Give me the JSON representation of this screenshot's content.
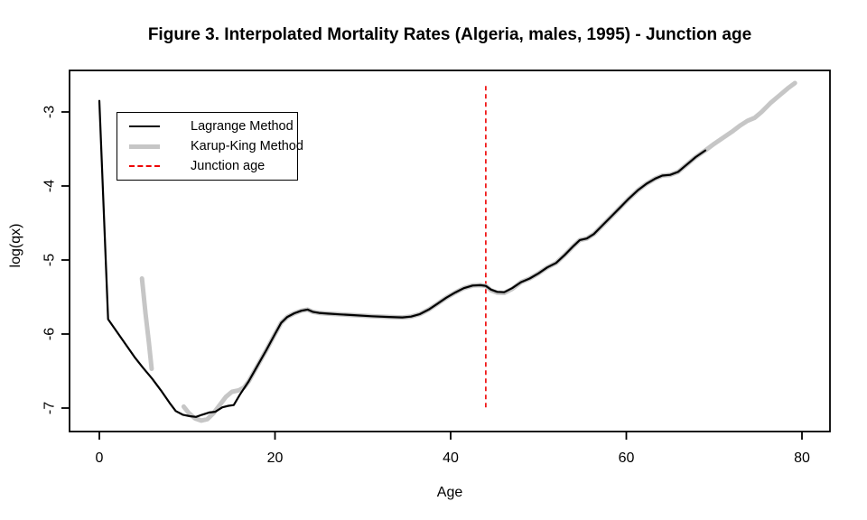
{
  "chart_data": {
    "type": "line",
    "title": "Figure 3. Interpolated Mortality Rates (Algeria, males, 1995) - Junction age",
    "xlabel": "Age",
    "ylabel": "log(qx)",
    "x_ticks": [
      0,
      20,
      40,
      60,
      80
    ],
    "y_ticks": [
      -3,
      -4,
      -5,
      -6,
      -7
    ],
    "xlim": [
      -3.4,
      83.3
    ],
    "ylim": [
      -7.32,
      -2.44
    ],
    "grid": false,
    "legend_position": "top-left",
    "junction_age": 44,
    "junction_line_extent": [
      -7.0,
      -2.65
    ],
    "colors": {
      "lagrange": "#000000",
      "karup_king": "#c6c6c6",
      "junction": "#ee0000",
      "axis": "#000000",
      "background": "#ffffff"
    },
    "legend": [
      {
        "label": "Lagrange Method",
        "style": "solid",
        "color": "#000000"
      },
      {
        "label": "Karup-King Method",
        "style": "thick",
        "color": "#c6c6c6"
      },
      {
        "label": "Junction age",
        "style": "dashed",
        "color": "#ee0000"
      }
    ],
    "series": [
      {
        "id": "karup-king-child",
        "name": "Karup-King Method (detached child segment)",
        "color": "#c6c6c6",
        "width": 5,
        "points": [
          [
            4.85,
            -5.25
          ],
          [
            5.25,
            -5.72
          ],
          [
            5.65,
            -6.12
          ],
          [
            5.95,
            -6.47
          ]
        ]
      },
      {
        "id": "karup-king",
        "name": "Karup-King Method",
        "color": "#c6c6c6",
        "width": 5,
        "points": [
          [
            9.6,
            -6.98
          ],
          [
            10.2,
            -7.07
          ],
          [
            10.9,
            -7.14
          ],
          [
            11.6,
            -7.17
          ],
          [
            12.3,
            -7.15
          ],
          [
            13,
            -7.07
          ],
          [
            13.7,
            -6.96
          ],
          [
            14.4,
            -6.85
          ],
          [
            15.1,
            -6.78
          ],
          [
            15.9,
            -6.76
          ],
          [
            16.5,
            -6.72
          ],
          [
            17,
            -6.64
          ],
          [
            18,
            -6.43
          ],
          [
            19,
            -6.22
          ],
          [
            20,
            -6.0
          ],
          [
            20.7,
            -5.85
          ],
          [
            21.4,
            -5.77
          ],
          [
            22.2,
            -5.72
          ],
          [
            23,
            -5.685
          ],
          [
            23.7,
            -5.67
          ],
          [
            24.3,
            -5.7
          ],
          [
            25,
            -5.715
          ],
          [
            26,
            -5.725
          ],
          [
            27.5,
            -5.735
          ],
          [
            29,
            -5.745
          ],
          [
            31,
            -5.76
          ],
          [
            33,
            -5.77
          ],
          [
            34.5,
            -5.775
          ],
          [
            35.5,
            -5.765
          ],
          [
            36.5,
            -5.73
          ],
          [
            37.5,
            -5.67
          ],
          [
            38.5,
            -5.59
          ],
          [
            39.5,
            -5.51
          ],
          [
            40.5,
            -5.44
          ],
          [
            41.5,
            -5.38
          ],
          [
            42.5,
            -5.345
          ],
          [
            43.4,
            -5.34
          ],
          [
            44,
            -5.35
          ],
          [
            44.6,
            -5.41
          ],
          [
            45.3,
            -5.44
          ],
          [
            46.1,
            -5.445
          ],
          [
            47,
            -5.39
          ],
          [
            48,
            -5.3
          ],
          [
            49,
            -5.25
          ],
          [
            50,
            -5.18
          ],
          [
            51,
            -5.1
          ],
          [
            52,
            -5.04
          ],
          [
            53,
            -4.93
          ],
          [
            54,
            -4.81
          ],
          [
            54.7,
            -4.73
          ],
          [
            55.5,
            -4.71
          ],
          [
            56.3,
            -4.65
          ],
          [
            57.3,
            -4.53
          ],
          [
            58.3,
            -4.41
          ],
          [
            59.3,
            -4.29
          ],
          [
            60.3,
            -4.17
          ],
          [
            61.3,
            -4.06
          ],
          [
            62.3,
            -3.97
          ],
          [
            63.3,
            -3.9
          ],
          [
            64.1,
            -3.86
          ],
          [
            65,
            -3.85
          ],
          [
            65.9,
            -3.81
          ],
          [
            66.9,
            -3.71
          ],
          [
            67.9,
            -3.61
          ],
          [
            69,
            -3.52
          ],
          [
            70,
            -3.43
          ],
          [
            71,
            -3.35
          ],
          [
            72,
            -3.27
          ],
          [
            73,
            -3.18
          ],
          [
            73.8,
            -3.12
          ],
          [
            74.6,
            -3.08
          ],
          [
            75.4,
            -3.0
          ],
          [
            76.4,
            -2.88
          ],
          [
            77.4,
            -2.78
          ],
          [
            78.4,
            -2.68
          ],
          [
            79.2,
            -2.61
          ]
        ]
      },
      {
        "id": "lagrange",
        "name": "Lagrange Method",
        "color": "#000000",
        "width": 2.2,
        "points": [
          [
            0,
            -2.85
          ],
          [
            1,
            -5.8
          ],
          [
            2,
            -5.97
          ],
          [
            3,
            -6.14
          ],
          [
            4,
            -6.31
          ],
          [
            5,
            -6.46
          ],
          [
            6,
            -6.6
          ],
          [
            7,
            -6.76
          ],
          [
            8,
            -6.93
          ],
          [
            8.7,
            -7.04
          ],
          [
            9.5,
            -7.09
          ],
          [
            10.3,
            -7.11
          ],
          [
            11,
            -7.12
          ],
          [
            11.7,
            -7.09
          ],
          [
            12.5,
            -7.06
          ],
          [
            13.2,
            -7.05
          ],
          [
            14,
            -6.99
          ],
          [
            14.7,
            -6.97
          ],
          [
            15.3,
            -6.96
          ],
          [
            16,
            -6.82
          ],
          [
            17,
            -6.64
          ],
          [
            18,
            -6.43
          ],
          [
            19,
            -6.22
          ],
          [
            20,
            -6.0
          ],
          [
            20.7,
            -5.85
          ],
          [
            21.4,
            -5.77
          ],
          [
            22.2,
            -5.72
          ],
          [
            23,
            -5.685
          ],
          [
            23.7,
            -5.67
          ],
          [
            24.3,
            -5.7
          ],
          [
            25,
            -5.715
          ],
          [
            26,
            -5.725
          ],
          [
            27.5,
            -5.735
          ],
          [
            29,
            -5.745
          ],
          [
            31,
            -5.76
          ],
          [
            33,
            -5.77
          ],
          [
            34.5,
            -5.775
          ],
          [
            35.5,
            -5.765
          ],
          [
            36.5,
            -5.73
          ],
          [
            37.5,
            -5.67
          ],
          [
            38.5,
            -5.59
          ],
          [
            39.5,
            -5.51
          ],
          [
            40.5,
            -5.44
          ],
          [
            41.5,
            -5.38
          ],
          [
            42.5,
            -5.345
          ],
          [
            43.4,
            -5.34
          ],
          [
            44,
            -5.35
          ],
          [
            44.6,
            -5.4
          ],
          [
            45.3,
            -5.43
          ],
          [
            46.1,
            -5.435
          ],
          [
            47,
            -5.38
          ],
          [
            48,
            -5.3
          ],
          [
            49,
            -5.25
          ],
          [
            50,
            -5.18
          ],
          [
            51,
            -5.1
          ],
          [
            52,
            -5.04
          ],
          [
            53,
            -4.93
          ],
          [
            54,
            -4.81
          ],
          [
            54.7,
            -4.73
          ],
          [
            55.5,
            -4.71
          ],
          [
            56.3,
            -4.65
          ],
          [
            57.3,
            -4.53
          ],
          [
            58.3,
            -4.41
          ],
          [
            59.3,
            -4.29
          ],
          [
            60.3,
            -4.17
          ],
          [
            61.3,
            -4.06
          ],
          [
            62.3,
            -3.97
          ],
          [
            63.3,
            -3.9
          ],
          [
            64.1,
            -3.86
          ],
          [
            65,
            -3.85
          ],
          [
            65.9,
            -3.81
          ],
          [
            66.9,
            -3.71
          ],
          [
            67.9,
            -3.61
          ],
          [
            69,
            -3.52
          ]
        ]
      }
    ]
  }
}
